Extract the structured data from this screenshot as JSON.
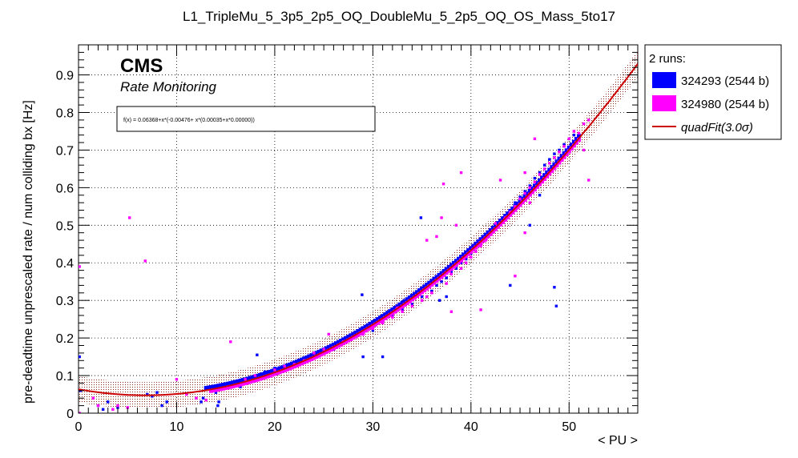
{
  "chart_data": {
    "type": "scatter",
    "title": "L1_TripleMu_5_3p5_2p5_OQ_DoubleMu_5_2p5_OQ_OS_Mass_5to17",
    "xlabel": "< PU >",
    "ylabel": "pre-deadtime unprescaled rate / num colliding bx [Hz]",
    "xlim": [
      0,
      57
    ],
    "ylim": [
      0,
      0.98
    ],
    "xticks": [
      0,
      10,
      20,
      30,
      40,
      50
    ],
    "yticks": [
      0,
      0.1,
      0.2,
      0.3,
      0.4,
      0.5,
      0.6,
      0.7,
      0.8,
      0.9
    ],
    "grid": true,
    "branding": {
      "experiment": "CMS",
      "subtitle": "Rate Monitoring"
    },
    "fit_formula": "f(x) = 0.06368+x*(-0.00476+ x*(0.00035+x*0.00000))",
    "fit": {
      "c0": 0.06368,
      "c1": -0.00476,
      "c2": 0.00035,
      "band": 0.035
    },
    "legend": {
      "header": "2 runs:",
      "position": "top-right outside",
      "entries": [
        {
          "label": "324293 (2544 b)",
          "color": "#0000ff",
          "kind": "box"
        },
        {
          "label": "324980 (2544 b)",
          "color": "#ff00ff",
          "kind": "box"
        },
        {
          "label": "quadFit(3.0σ)",
          "color": "#cc0000",
          "kind": "line"
        }
      ]
    },
    "series": [
      {
        "name": "324293 (2544 b)",
        "color": "#0000ff",
        "points": [
          [
            0.1,
            0.15
          ],
          [
            0.2,
            0.06
          ],
          [
            2,
            0.02
          ],
          [
            2.5,
            0.01
          ],
          [
            3,
            0.03
          ],
          [
            4,
            0.015
          ],
          [
            7,
            0.05
          ],
          [
            7.5,
            0.045
          ],
          [
            8,
            0.055
          ],
          [
            8.5,
            0.02
          ],
          [
            9,
            0.03
          ],
          [
            12.5,
            0.03
          ],
          [
            12.7,
            0.04
          ],
          [
            13.5,
            0.06
          ],
          [
            14,
            0.055
          ],
          [
            14.2,
            0.02
          ],
          [
            14.3,
            0.03
          ],
          [
            14.5,
            0.065
          ],
          [
            15.5,
            0.075
          ],
          [
            16,
            0.08
          ],
          [
            16.5,
            0.07
          ],
          [
            17,
            0.09
          ],
          [
            17.5,
            0.095
          ],
          [
            18,
            0.1
          ],
          [
            18.2,
            0.155
          ],
          [
            19,
            0.11
          ],
          [
            20,
            0.12
          ],
          [
            21,
            0.125
          ],
          [
            22,
            0.13
          ],
          [
            23,
            0.145
          ],
          [
            24,
            0.155
          ],
          [
            25,
            0.165
          ],
          [
            26,
            0.17
          ],
          [
            27,
            0.19
          ],
          [
            28,
            0.2
          ],
          [
            29,
            0.21
          ],
          [
            28.9,
            0.315
          ],
          [
            29,
            0.15
          ],
          [
            30,
            0.22
          ],
          [
            31,
            0.24
          ],
          [
            31,
            0.15
          ],
          [
            32,
            0.26
          ],
          [
            33,
            0.275
          ],
          [
            34,
            0.29
          ],
          [
            35,
            0.31
          ],
          [
            34.9,
            0.52
          ],
          [
            36,
            0.325
          ],
          [
            36.5,
            0.34
          ],
          [
            37,
            0.35
          ],
          [
            37.5,
            0.36
          ],
          [
            38,
            0.375
          ],
          [
            38.5,
            0.385
          ],
          [
            39,
            0.4
          ],
          [
            39.5,
            0.41
          ],
          [
            40,
            0.425
          ],
          [
            40.5,
            0.44
          ],
          [
            41,
            0.45
          ],
          [
            41.5,
            0.465
          ],
          [
            42,
            0.48
          ],
          [
            42.5,
            0.495
          ],
          [
            43,
            0.51
          ],
          [
            43.5,
            0.525
          ],
          [
            44,
            0.54
          ],
          [
            44.5,
            0.56
          ],
          [
            45,
            0.575
          ],
          [
            45.5,
            0.59
          ],
          [
            46,
            0.605
          ],
          [
            46.5,
            0.625
          ],
          [
            47,
            0.64
          ],
          [
            47.5,
            0.66
          ],
          [
            48,
            0.675
          ],
          [
            48.5,
            0.69
          ],
          [
            49,
            0.7
          ],
          [
            49.5,
            0.715
          ],
          [
            50,
            0.73
          ],
          [
            50.5,
            0.74
          ],
          [
            44,
            0.34
          ],
          [
            46,
            0.5
          ],
          [
            47,
            0.58
          ],
          [
            48.5,
            0.335
          ],
          [
            48.7,
            0.285
          ],
          [
            36.8,
            0.3
          ],
          [
            37.5,
            0.31
          ]
        ]
      },
      {
        "name": "324980 (2544 b)",
        "color": "#ff00ff",
        "points": [
          [
            0.1,
            0.39
          ],
          [
            0.1,
            0.0
          ],
          [
            1.5,
            0.04
          ],
          [
            2,
            0.02
          ],
          [
            3.5,
            0.01
          ],
          [
            4,
            0.02
          ],
          [
            5,
            0.015
          ],
          [
            5.2,
            0.52
          ],
          [
            6.8,
            0.405
          ],
          [
            10,
            0.09
          ],
          [
            11,
            0.05
          ],
          [
            12,
            0.04
          ],
          [
            13,
            0.035
          ],
          [
            15.5,
            0.19
          ],
          [
            17,
            0.09
          ],
          [
            18,
            0.1
          ],
          [
            20,
            0.115
          ],
          [
            21,
            0.125
          ],
          [
            22,
            0.13
          ],
          [
            23,
            0.14
          ],
          [
            24,
            0.16
          ],
          [
            25,
            0.17
          ],
          [
            25.5,
            0.21
          ],
          [
            26,
            0.175
          ],
          [
            27,
            0.19
          ],
          [
            28,
            0.2
          ],
          [
            29,
            0.21
          ],
          [
            30,
            0.225
          ],
          [
            31,
            0.24
          ],
          [
            32,
            0.255
          ],
          [
            33,
            0.27
          ],
          [
            34,
            0.285
          ],
          [
            35,
            0.3
          ],
          [
            35.5,
            0.31
          ],
          [
            36,
            0.32
          ],
          [
            36.5,
            0.47
          ],
          [
            37,
            0.52
          ],
          [
            37.2,
            0.61
          ],
          [
            37.5,
            0.345
          ],
          [
            38,
            0.37
          ],
          [
            38.5,
            0.5
          ],
          [
            39,
            0.385
          ],
          [
            39.5,
            0.4
          ],
          [
            40,
            0.415
          ],
          [
            40.5,
            0.43
          ],
          [
            41,
            0.445
          ],
          [
            41.5,
            0.46
          ],
          [
            42,
            0.475
          ],
          [
            42.5,
            0.49
          ],
          [
            43,
            0.505
          ],
          [
            43.5,
            0.52
          ],
          [
            44,
            0.535
          ],
          [
            44.5,
            0.55
          ],
          [
            45,
            0.57
          ],
          [
            45.5,
            0.585
          ],
          [
            46,
            0.6
          ],
          [
            46.5,
            0.615
          ],
          [
            47,
            0.635
          ],
          [
            47.5,
            0.65
          ],
          [
            48,
            0.665
          ],
          [
            48.5,
            0.68
          ],
          [
            49,
            0.695
          ],
          [
            49.5,
            0.71
          ],
          [
            50,
            0.73
          ],
          [
            50.5,
            0.75
          ],
          [
            51,
            0.745
          ],
          [
            51.5,
            0.77
          ],
          [
            52,
            0.78
          ],
          [
            41,
            0.275
          ],
          [
            44.5,
            0.365
          ],
          [
            42.5,
            0.505
          ],
          [
            43,
            0.62
          ],
          [
            45.5,
            0.64
          ],
          [
            46,
            0.56
          ],
          [
            46.5,
            0.73
          ],
          [
            45.5,
            0.48
          ],
          [
            38,
            0.27
          ],
          [
            35,
            0.3
          ],
          [
            39,
            0.64
          ],
          [
            35.5,
            0.46
          ],
          [
            32.5,
            0.28
          ],
          [
            51.5,
            0.7
          ],
          [
            52,
            0.62
          ]
        ]
      }
    ]
  }
}
